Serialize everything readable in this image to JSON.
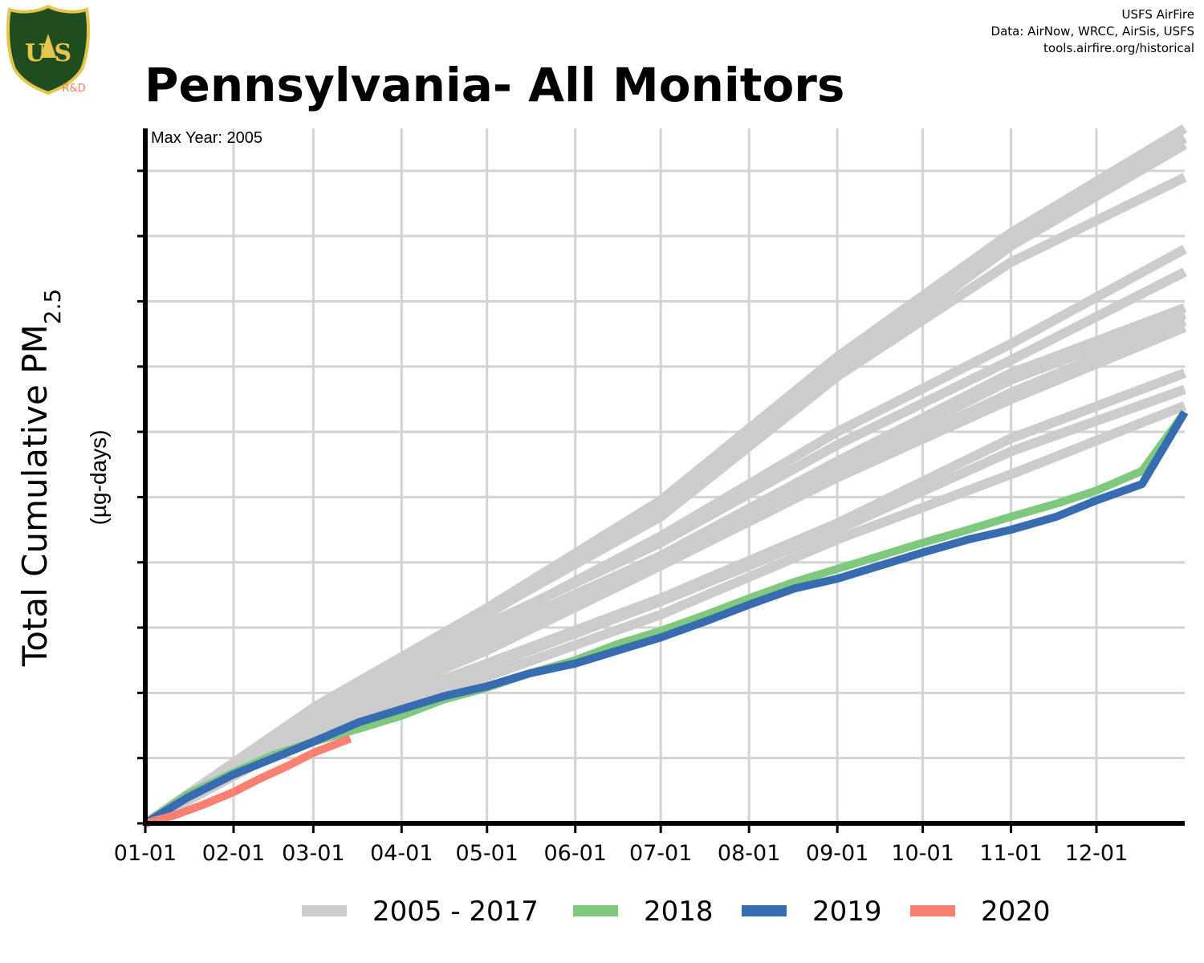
{
  "header": {
    "title": "Pennsylvania- All Monitors",
    "credits": [
      "USFS AirFire",
      "Data: AirNow, WRCC, AirSis, USFS",
      "tools.airfire.org/historical"
    ],
    "logo_text": "U S",
    "logo_rd": "R&D"
  },
  "colors": {
    "grid": "#d3d3d3",
    "historic": "#cccccc",
    "y2018": "#7fc97f",
    "y2019": "#386cb0",
    "y2020": "#fb8072",
    "logo_green": "#1f4d1f",
    "logo_gold": "#e6c64a",
    "logo_rd": "#f08060"
  },
  "chart_data": {
    "type": "line",
    "title": "Pennsylvania- All Monitors",
    "ylabel": "Total Cumulative PM2.5",
    "ylabel_main": "Total Cumulative PM",
    "ylabel_sub": "2.5",
    "yunit": "(µg-days)",
    "annotation": "Max Year: 2005",
    "x_axis": {
      "tick_labels": [
        "01-01",
        "02-01",
        "03-01",
        "04-01",
        "05-01",
        "06-01",
        "07-01",
        "08-01",
        "09-01",
        "10-01",
        "11-01",
        "12-01"
      ],
      "tick_days": [
        0,
        31,
        59,
        90,
        120,
        151,
        181,
        212,
        243,
        273,
        304,
        334
      ],
      "xlim": [
        0,
        365
      ]
    },
    "y_axis": {
      "tick_labels_shown": false,
      "ylim": [
        0,
        1065
      ],
      "gridlines": [
        0,
        100,
        200,
        300,
        400,
        500,
        600,
        700,
        800,
        900,
        1000
      ]
    },
    "legend": {
      "position": "bottom",
      "entries": [
        {
          "label": "2005 - 2017",
          "color": "#cccccc"
        },
        {
          "label": "2018",
          "color": "#7fc97f"
        },
        {
          "label": "2019",
          "color": "#386cb0"
        },
        {
          "label": "2020",
          "color": "#fb8072"
        }
      ]
    },
    "series": [
      {
        "name": "2005 - 2017",
        "group": "historic",
        "x": [
          0,
          60,
          120,
          181,
          243,
          304,
          365
        ],
        "y": [
          0,
          180,
          330,
          495,
          715,
          905,
          1065
        ]
      },
      {
        "name": "2005 - 2017",
        "group": "historic",
        "x": [
          0,
          60,
          120,
          181,
          243,
          304,
          365
        ],
        "y": [
          0,
          178,
          325,
          490,
          700,
          890,
          1050
        ]
      },
      {
        "name": "2005 - 2017",
        "group": "historic",
        "x": [
          0,
          60,
          120,
          181,
          243,
          304,
          365
        ],
        "y": [
          0,
          175,
          320,
          480,
          690,
          885,
          1040
        ]
      },
      {
        "name": "2005 - 2017",
        "group": "historic",
        "x": [
          0,
          60,
          120,
          181,
          243,
          304,
          365
        ],
        "y": [
          0,
          176,
          322,
          470,
          685,
          860,
          990
        ]
      },
      {
        "name": "2005 - 2017",
        "group": "historic",
        "x": [
          0,
          60,
          120,
          181,
          243,
          304,
          365
        ],
        "y": [
          0,
          160,
          300,
          440,
          600,
          735,
          880
        ]
      },
      {
        "name": "2005 - 2017",
        "group": "historic",
        "x": [
          0,
          60,
          120,
          181,
          243,
          304,
          365
        ],
        "y": [
          0,
          165,
          305,
          430,
          580,
          710,
          845
        ]
      },
      {
        "name": "2005 - 2017",
        "group": "historic",
        "x": [
          0,
          60,
          120,
          181,
          243,
          304,
          365
        ],
        "y": [
          0,
          160,
          290,
          410,
          555,
          690,
          790
        ]
      },
      {
        "name": "2005 - 2017",
        "group": "historic",
        "x": [
          0,
          60,
          120,
          181,
          243,
          304,
          365
        ],
        "y": [
          0,
          158,
          285,
          405,
          545,
          680,
          780
        ]
      },
      {
        "name": "2005 - 2017",
        "group": "historic",
        "x": [
          0,
          60,
          120,
          181,
          243,
          304,
          365
        ],
        "y": [
          0,
          160,
          270,
          400,
          535,
          660,
          770
        ]
      },
      {
        "name": "2005 - 2017",
        "group": "historic",
        "x": [
          0,
          60,
          120,
          181,
          243,
          304,
          365
        ],
        "y": [
          0,
          155,
          265,
          395,
          530,
          650,
          760
        ]
      },
      {
        "name": "2005 - 2017",
        "group": "historic",
        "x": [
          0,
          60,
          120,
          181,
          243,
          304,
          365
        ],
        "y": [
          0,
          150,
          245,
          345,
          460,
          590,
          690
        ]
      },
      {
        "name": "2005 - 2017",
        "group": "historic",
        "x": [
          0,
          60,
          120,
          181,
          243,
          304,
          365
        ],
        "y": [
          0,
          148,
          240,
          340,
          450,
          570,
          665
        ]
      },
      {
        "name": "2005 - 2017",
        "group": "historic",
        "x": [
          0,
          60,
          120,
          181,
          243,
          304,
          365
        ],
        "y": [
          0,
          140,
          225,
          320,
          435,
          535,
          640
        ]
      },
      {
        "name": "2018",
        "group": "y2018",
        "x": [
          0,
          15,
          31,
          45,
          59,
          75,
          90,
          105,
          120,
          135,
          151,
          166,
          181,
          197,
          212,
          228,
          243,
          258,
          273,
          289,
          304,
          320,
          334,
          350,
          365
        ],
        "y": [
          0,
          45,
          78,
          105,
          125,
          145,
          165,
          190,
          208,
          230,
          250,
          275,
          295,
          320,
          345,
          370,
          390,
          410,
          430,
          450,
          470,
          490,
          510,
          540,
          630
        ]
      },
      {
        "name": "2019",
        "group": "y2019",
        "x": [
          0,
          15,
          31,
          45,
          59,
          75,
          90,
          105,
          120,
          135,
          151,
          166,
          181,
          197,
          212,
          228,
          243,
          258,
          273,
          289,
          304,
          320,
          334,
          350,
          365
        ],
        "y": [
          0,
          40,
          75,
          100,
          125,
          155,
          175,
          195,
          210,
          230,
          245,
          265,
          285,
          310,
          335,
          360,
          375,
          395,
          415,
          435,
          450,
          470,
          495,
          520,
          630
        ]
      },
      {
        "name": "2020",
        "group": "y2020",
        "x": [
          0,
          10,
          20,
          31,
          40,
          50,
          59,
          66,
          72
        ],
        "y": [
          0,
          12,
          28,
          48,
          68,
          88,
          108,
          120,
          130
        ]
      }
    ]
  }
}
